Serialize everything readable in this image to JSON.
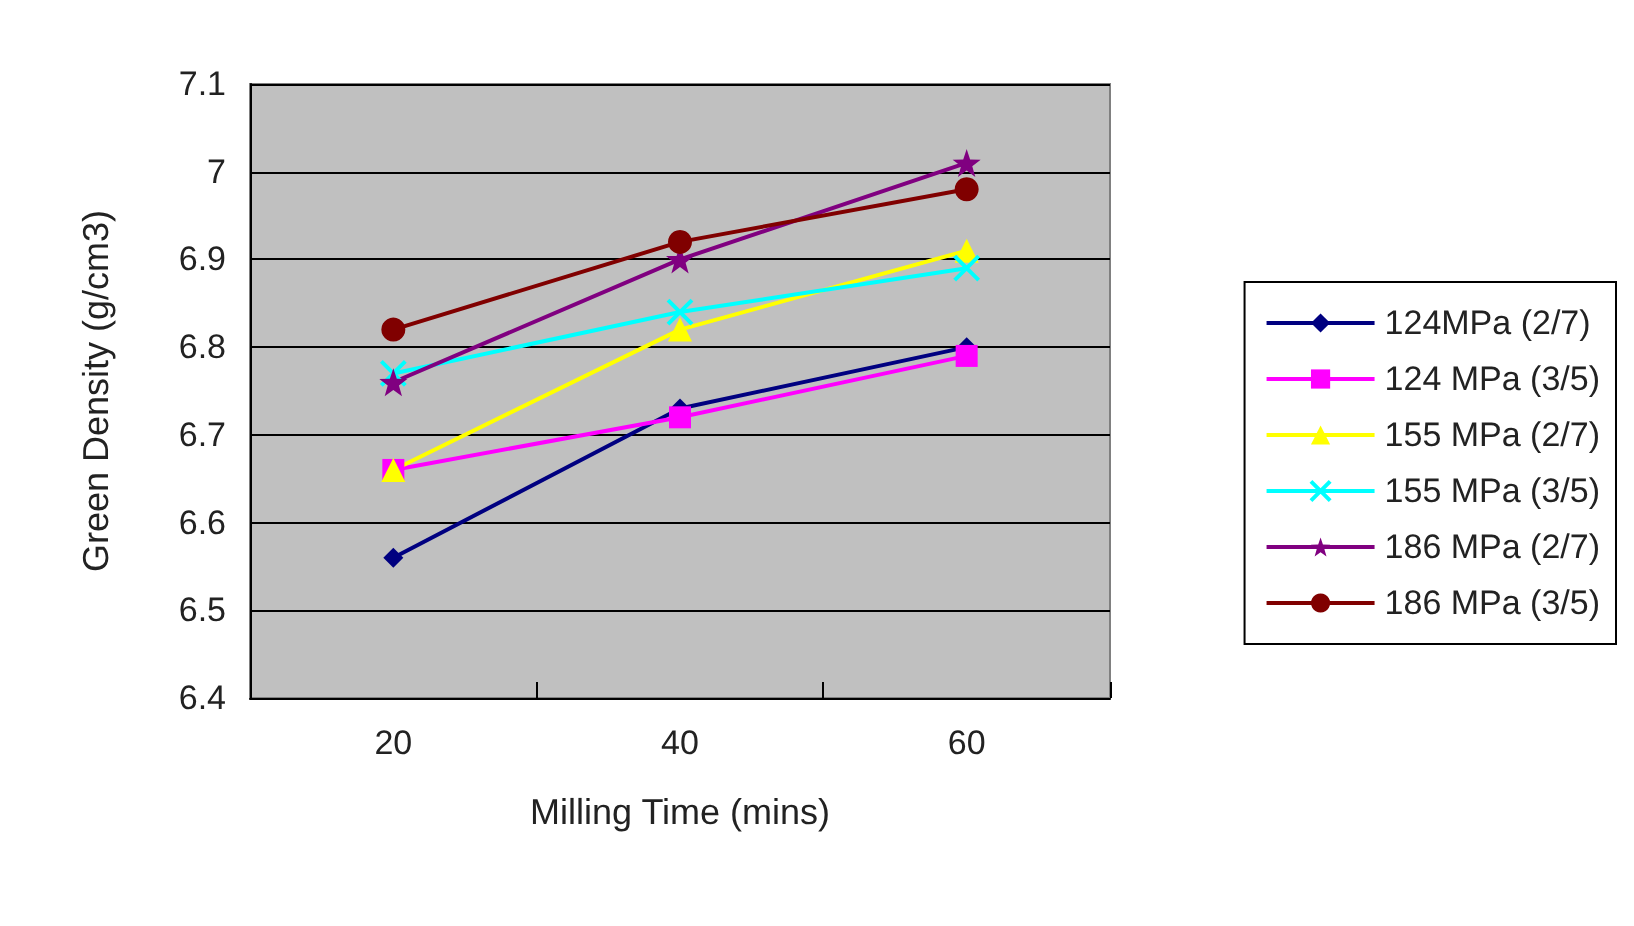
{
  "chart_data": {
    "type": "line",
    "xlabel": "Milling Time (mins)",
    "ylabel": "Green Density (g/cm3)",
    "categories": [
      "20",
      "40",
      "60"
    ],
    "ylim": [
      6.4,
      7.1
    ],
    "yticks": [
      6.4,
      6.5,
      6.6,
      6.7,
      6.8,
      6.9,
      {
        "value": 7.0,
        "label": "7"
      },
      7.1
    ],
    "grid": "y",
    "legend": "right",
    "line_style": "solid",
    "series": [
      {
        "name": "124MPa (2/7)",
        "color": "#000080",
        "marker": "diamond",
        "values": [
          6.56,
          6.73,
          6.8
        ]
      },
      {
        "name": "124 MPa (3/5)",
        "color": "#ff00ff",
        "marker": "square",
        "values": [
          6.66,
          6.72,
          6.79
        ]
      },
      {
        "name": "155 MPa (2/7)",
        "color": "#ffff00",
        "marker": "triangle",
        "values": [
          6.66,
          6.82,
          6.91
        ]
      },
      {
        "name": "155 MPa (3/5)",
        "color": "#00ffff",
        "marker": "cross",
        "values": [
          6.77,
          6.84,
          6.89
        ]
      },
      {
        "name": "186 MPa (2/7)",
        "color": "#800080",
        "marker": "star",
        "values": [
          6.76,
          6.9,
          7.01
        ]
      },
      {
        "name": "186 MPa (3/5)",
        "color": "#800000",
        "marker": "circle",
        "values": [
          6.82,
          6.92,
          6.98
        ]
      }
    ]
  }
}
